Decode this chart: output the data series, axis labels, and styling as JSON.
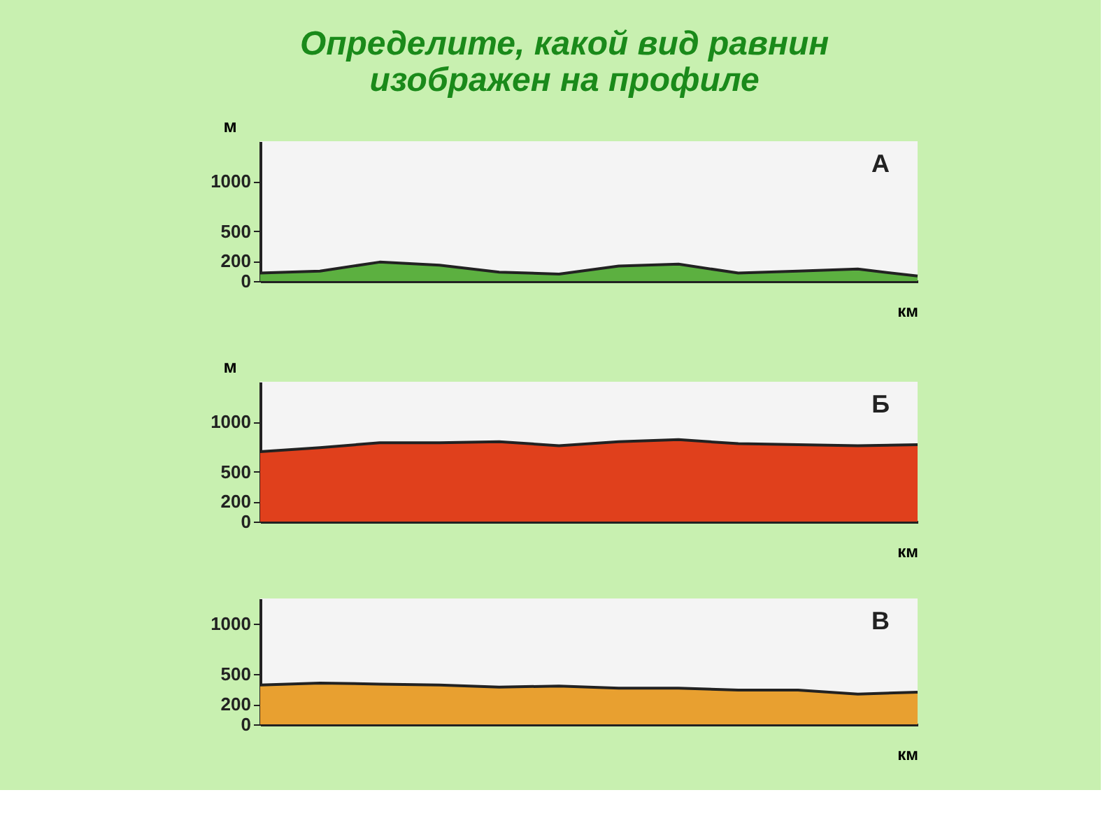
{
  "chart_data": [
    {
      "type": "area",
      "title": "Определите, какой вид равнин изображен на профиле",
      "xlabel": "км",
      "ylabel": "м",
      "annotations": [
        "А"
      ],
      "categories": [
        null,
        null,
        null,
        null,
        null,
        null,
        null,
        null,
        null,
        null,
        null,
        null
      ],
      "series": [
        {
          "color": "#5cb040",
          "values": [
            80,
            100,
            190,
            160,
            90,
            70,
            150,
            170,
            80,
            100,
            120,
            50
          ]
        }
      ],
      "ylim": [
        0,
        1400
      ],
      "yticks": [
        0,
        200,
        500,
        1000
      ],
      "grid": false,
      "legend": false
    },
    {
      "type": "area",
      "xlabel": "км",
      "ylabel": "м",
      "annotations": [
        "Б"
      ],
      "categories": [
        null,
        null,
        null,
        null,
        null,
        null,
        null,
        null,
        null,
        null,
        null,
        null
      ],
      "series": [
        {
          "color": "#e0401c",
          "values": [
            700,
            740,
            790,
            790,
            800,
            760,
            800,
            820,
            780,
            770,
            760,
            770
          ]
        }
      ],
      "ylim": [
        0,
        1400
      ],
      "yticks": [
        0,
        200,
        500,
        1000
      ],
      "grid": false,
      "legend": false
    },
    {
      "type": "area",
      "xlabel": "км",
      "annotations": [
        "В"
      ],
      "categories": [
        null,
        null,
        null,
        null,
        null,
        null,
        null,
        null,
        null,
        null,
        null,
        null
      ],
      "series": [
        {
          "color": "#e8a030",
          "values": [
            390,
            410,
            400,
            390,
            370,
            380,
            360,
            360,
            340,
            340,
            300,
            320
          ]
        }
      ],
      "ylim": [
        0,
        1250
      ],
      "yticks": [
        0,
        200,
        500,
        1000
      ],
      "grid": false,
      "legend": false
    }
  ]
}
